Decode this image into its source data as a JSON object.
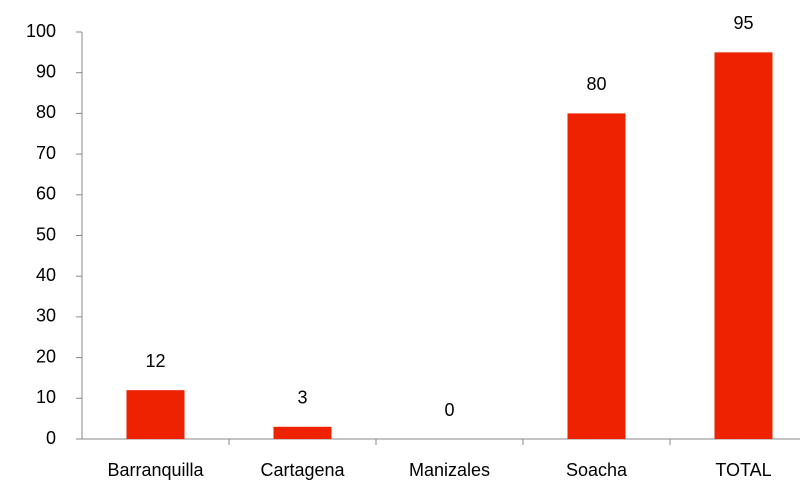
{
  "chart_data": {
    "type": "bar",
    "categories": [
      "Barranquilla",
      "Cartagena",
      "Manizales",
      "Soacha",
      "TOTAL"
    ],
    "values": [
      12,
      3,
      0,
      80,
      95
    ],
    "color": "#ee2200",
    "ylim": [
      0,
      100
    ],
    "yticks": [
      0,
      10,
      20,
      30,
      40,
      50,
      60,
      70,
      80,
      90,
      100
    ],
    "grid": false
  }
}
